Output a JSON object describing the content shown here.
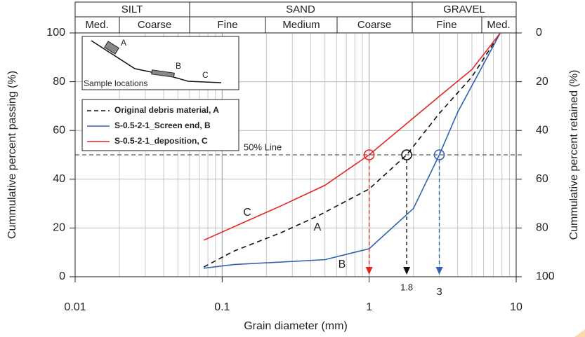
{
  "chart_data": {
    "type": "line",
    "xlabel": "Grain diameter (mm)",
    "ylabel": "Cummulative percent passing (%)",
    "y2label": "Cummulative percent retained (%)",
    "xscale": "log",
    "xlim": [
      0.01,
      10
    ],
    "xticks": [
      0.01,
      0.1,
      1,
      10
    ],
    "ylim": [
      0,
      100
    ],
    "yticks": [
      0,
      20,
      40,
      60,
      80,
      100
    ],
    "y2lim": [
      100,
      0
    ],
    "y2ticks": [
      0,
      20,
      40,
      60,
      80,
      100
    ],
    "grid": true,
    "classification": {
      "groups": [
        "SILT",
        "SAND",
        "GRAVEL"
      ],
      "subgroups": [
        "Med.",
        "Coarse",
        "Fine",
        "Medium",
        "Coarse",
        "Fine",
        "Med."
      ]
    },
    "series": [
      {
        "name": "Original debris material, A",
        "color": "#111111",
        "dash": true,
        "x": [
          0.075,
          0.12,
          0.25,
          0.45,
          1,
          1.8,
          3,
          5,
          7.8
        ],
        "values": [
          4,
          10.5,
          18,
          25,
          36,
          50,
          67,
          82,
          100
        ]
      },
      {
        "name": "S-0.5-2-1_Screen end, B",
        "color": "#2f62b0",
        "dash": false,
        "x": [
          0.075,
          0.12,
          0.5,
          1,
          2,
          3,
          4,
          7.8
        ],
        "values": [
          3.5,
          5,
          7,
          11.5,
          28,
          50,
          67.5,
          100
        ]
      },
      {
        "name": "S-0.5-2-1_deposition, C",
        "color": "#e52421",
        "dash": false,
        "x": [
          0.075,
          0.25,
          0.5,
          1,
          3,
          5,
          7.8
        ],
        "values": [
          15,
          29,
          37.5,
          50,
          74,
          85,
          100
        ]
      }
    ],
    "reference_line": {
      "y": 50,
      "label": "50% Line"
    },
    "markers": [
      {
        "x": 1,
        "y": 50,
        "color": "#e52421"
      },
      {
        "x": 1.8,
        "y": 50,
        "color": "#111111",
        "label": "1.8"
      },
      {
        "x": 3,
        "y": 50,
        "color": "#2f62b0",
        "label": "3"
      }
    ],
    "curve_labels": [
      "C",
      "A",
      "B"
    ],
    "inset": {
      "labels": [
        "A",
        "B",
        "C"
      ],
      "caption": "Sample locations"
    }
  }
}
